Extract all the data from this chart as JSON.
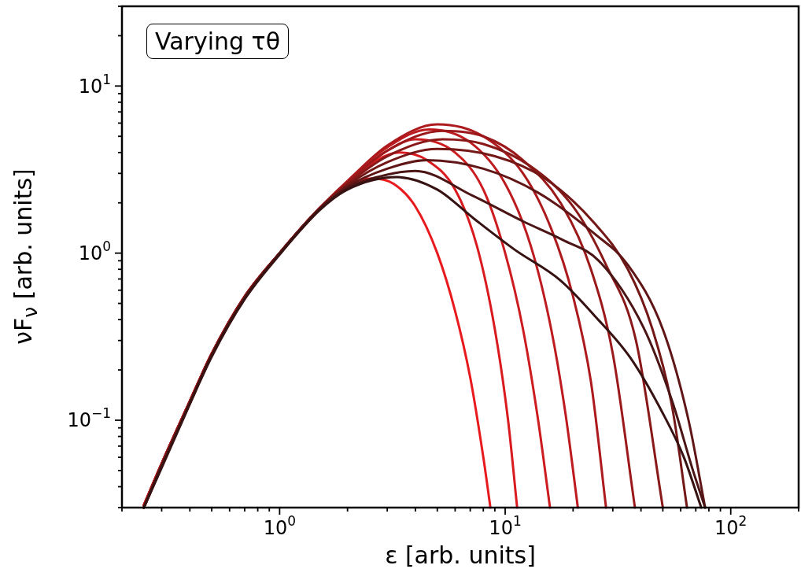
{
  "chart_data": {
    "type": "line",
    "xlabel": "ε [arb. units]",
    "ylabel": "νF$_{ν}$ [arb. units]",
    "annotations": [
      "Varying τθ"
    ],
    "log": "xy",
    "grid": false,
    "legend": false,
    "marker": "none",
    "line_style": "solid",
    "xlim": [
      0.2,
      200
    ],
    "ylim": [
      0.03,
      30
    ],
    "xticks": [
      {
        "value": 0.2,
        "label": null
      },
      {
        "value": 0.3,
        "label": null
      },
      {
        "value": 0.4,
        "label": null
      },
      {
        "value": 0.5,
        "label": null
      },
      {
        "value": 0.6,
        "label": null
      },
      {
        "value": 0.7,
        "label": null
      },
      {
        "value": 0.8,
        "label": null
      },
      {
        "value": 0.9,
        "label": null
      },
      {
        "value": 1,
        "label": "10$^{0}$"
      },
      {
        "value": 2,
        "label": null
      },
      {
        "value": 3,
        "label": null
      },
      {
        "value": 4,
        "label": null
      },
      {
        "value": 5,
        "label": null
      },
      {
        "value": 6,
        "label": null
      },
      {
        "value": 7,
        "label": null
      },
      {
        "value": 8,
        "label": null
      },
      {
        "value": 9,
        "label": null
      },
      {
        "value": 10,
        "label": "10$^{1}$"
      },
      {
        "value": 20,
        "label": null
      },
      {
        "value": 30,
        "label": null
      },
      {
        "value": 40,
        "label": null
      },
      {
        "value": 50,
        "label": null
      },
      {
        "value": 60,
        "label": null
      },
      {
        "value": 70,
        "label": null
      },
      {
        "value": 80,
        "label": null
      },
      {
        "value": 90,
        "label": null
      },
      {
        "value": 100,
        "label": "10$^{2}$"
      },
      {
        "value": 200,
        "label": null
      }
    ],
    "yticks": [
      {
        "value": 0.03,
        "label": null
      },
      {
        "value": 0.04,
        "label": null
      },
      {
        "value": 0.05,
        "label": null
      },
      {
        "value": 0.06,
        "label": null
      },
      {
        "value": 0.07,
        "label": null
      },
      {
        "value": 0.08,
        "label": null
      },
      {
        "value": 0.09,
        "label": null
      },
      {
        "value": 0.1,
        "label": "10$^{−1}$"
      },
      {
        "value": 0.2,
        "label": null
      },
      {
        "value": 0.3,
        "label": null
      },
      {
        "value": 0.4,
        "label": null
      },
      {
        "value": 0.5,
        "label": null
      },
      {
        "value": 0.6,
        "label": null
      },
      {
        "value": 0.7,
        "label": null
      },
      {
        "value": 0.8,
        "label": null
      },
      {
        "value": 0.9,
        "label": null
      },
      {
        "value": 1,
        "label": "10$^{0}$"
      },
      {
        "value": 2,
        "label": null
      },
      {
        "value": 3,
        "label": null
      },
      {
        "value": 4,
        "label": null
      },
      {
        "value": 5,
        "label": null
      },
      {
        "value": 6,
        "label": null
      },
      {
        "value": 7,
        "label": null
      },
      {
        "value": 8,
        "label": null
      },
      {
        "value": 9,
        "label": null
      },
      {
        "value": 10,
        "label": "10$^{1}$"
      },
      {
        "value": 20,
        "label": null
      },
      {
        "value": 30,
        "label": null
      }
    ],
    "series": [
      {
        "color": "#361212",
        "x": [
          0.25,
          0.3,
          0.4,
          0.5,
          0.7,
          1.0,
          1.5,
          2.0,
          3.3,
          5,
          7.3,
          11,
          17.5,
          25,
          36,
          50,
          62,
          74
        ],
        "values": [
          0.03,
          0.052,
          0.125,
          0.24,
          0.53,
          0.98,
          1.8,
          2.4,
          2.85,
          2.4,
          1.6,
          1.05,
          0.69,
          0.42,
          0.235,
          0.11,
          0.06,
          0.03
        ]
      },
      {
        "color": "#4b1515",
        "x": [
          0.25,
          0.3,
          0.4,
          0.5,
          0.7,
          1.0,
          1.5,
          2.0,
          3,
          4,
          7.2,
          12,
          18,
          26,
          41,
          55,
          68,
          77
        ],
        "values": [
          0.03,
          0.053,
          0.126,
          0.245,
          0.535,
          0.99,
          1.82,
          2.45,
          2.95,
          3.1,
          2.2,
          1.55,
          1.2,
          0.9,
          0.36,
          0.13,
          0.05,
          0.03
        ]
      },
      {
        "color": "#601616",
        "x": [
          0.25,
          0.3,
          0.4,
          0.5,
          0.7,
          1.0,
          1.5,
          2.0,
          3,
          4.5,
          8,
          14,
          25,
          35,
          50,
          65,
          77
        ],
        "values": [
          0.03,
          0.053,
          0.127,
          0.245,
          0.54,
          1.0,
          1.83,
          2.5,
          3.2,
          3.6,
          3.2,
          2.3,
          1.3,
          0.85,
          0.35,
          0.1,
          0.03
        ]
      },
      {
        "color": "#741717",
        "x": [
          0.25,
          0.3,
          0.4,
          0.5,
          0.7,
          1.0,
          1.5,
          2.0,
          3,
          5,
          9,
          15,
          25,
          35,
          45,
          55,
          64
        ],
        "values": [
          0.03,
          0.054,
          0.128,
          0.247,
          0.545,
          1.0,
          1.84,
          2.55,
          3.5,
          4.2,
          3.8,
          2.8,
          1.5,
          0.8,
          0.35,
          0.12,
          0.03
        ]
      },
      {
        "color": "#891819",
        "x": [
          0.25,
          0.3,
          0.4,
          0.5,
          0.7,
          1.0,
          1.5,
          2.0,
          3,
          5.3,
          8,
          13,
          20,
          28,
          38,
          50
        ],
        "values": [
          0.03,
          0.054,
          0.128,
          0.248,
          0.548,
          1.0,
          1.85,
          2.6,
          3.8,
          4.8,
          4.5,
          3.3,
          1.9,
          0.85,
          0.3,
          0.03
        ]
      },
      {
        "color": "#9c191b",
        "x": [
          0.25,
          0.3,
          0.4,
          0.5,
          0.7,
          1.0,
          1.5,
          2.0,
          3,
          5.3,
          8,
          12,
          18,
          24,
          30,
          37.6
        ],
        "values": [
          0.03,
          0.055,
          0.129,
          0.25,
          0.55,
          1.0,
          1.85,
          2.65,
          4.1,
          5.4,
          5.0,
          3.6,
          1.9,
          0.8,
          0.25,
          0.03
        ]
      },
      {
        "color": "#ad1a1d",
        "x": [
          0.25,
          0.3,
          0.4,
          0.5,
          0.7,
          1.0,
          1.5,
          2.0,
          3,
          5,
          8,
          12,
          16,
          20,
          24,
          28
        ],
        "values": [
          0.031,
          0.055,
          0.13,
          0.25,
          0.55,
          1.0,
          1.85,
          2.7,
          4.4,
          5.9,
          5.0,
          3.0,
          1.4,
          0.55,
          0.17,
          0.03
        ]
      },
      {
        "color": "#bd1b1f",
        "x": [
          0.25,
          0.3,
          0.4,
          0.5,
          0.7,
          1.0,
          1.5,
          2.0,
          3,
          4.6,
          7,
          10,
          13,
          16,
          18.5,
          21
        ],
        "values": [
          0.031,
          0.055,
          0.13,
          0.25,
          0.55,
          1.0,
          1.85,
          2.7,
          4.3,
          5.5,
          4.6,
          2.6,
          1.1,
          0.35,
          0.11,
          0.03
        ]
      },
      {
        "color": "#cc1c20",
        "x": [
          0.25,
          0.3,
          0.4,
          0.5,
          0.7,
          1.0,
          1.5,
          2.0,
          3,
          4,
          6,
          8,
          10,
          12,
          14,
          15.8
        ],
        "values": [
          0.031,
          0.055,
          0.13,
          0.25,
          0.55,
          1.0,
          1.85,
          2.65,
          4.1,
          4.8,
          4.0,
          2.4,
          1.0,
          0.35,
          0.1,
          0.03
        ]
      },
      {
        "color": "#d91b1f",
        "x": [
          0.25,
          0.3,
          0.4,
          0.5,
          0.7,
          1.0,
          1.5,
          2.0,
          2.7,
          3.4,
          4.5,
          6,
          7.5,
          9,
          10.3,
          11.3
        ],
        "values": [
          0.031,
          0.055,
          0.13,
          0.25,
          0.55,
          1.0,
          1.85,
          2.6,
          3.6,
          4.0,
          3.6,
          2.4,
          1.1,
          0.35,
          0.1,
          0.03
        ]
      },
      {
        "color": "#e81a1e",
        "x": [
          0.25,
          0.3,
          0.4,
          0.5,
          0.7,
          1.0,
          1.5,
          2.0,
          2.6,
          3.2,
          4.0,
          5.0,
          6.0,
          7.0,
          8.0,
          8.6
        ],
        "values": [
          0.031,
          0.055,
          0.13,
          0.25,
          0.55,
          1.0,
          1.85,
          2.55,
          2.8,
          2.6,
          1.9,
          1.0,
          0.45,
          0.18,
          0.06,
          0.03
        ]
      }
    ]
  }
}
